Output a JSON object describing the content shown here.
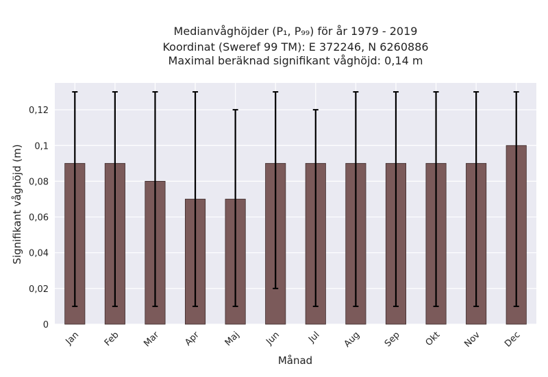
{
  "chart_data": {
    "type": "bar",
    "title_lines": [
      "Medianvåghöjder (P₁, P₉₉) för år 1979 - 2019",
      "Koordinat (Sweref 99 TM): E 372246, N 6260886",
      "Maximal beräknad signifikant våghöjd: 0,14 m"
    ],
    "xlabel": "Månad",
    "ylabel": "Signifikant våghöjd (m)",
    "categories": [
      "Jan",
      "Feb",
      "Mar",
      "Apr",
      "Maj",
      "Jun",
      "Jul",
      "Aug",
      "Sep",
      "Okt",
      "Nov",
      "Dec"
    ],
    "values": [
      0.09,
      0.09,
      0.08,
      0.07,
      0.07,
      0.09,
      0.09,
      0.09,
      0.09,
      0.09,
      0.09,
      0.1
    ],
    "err_low": [
      0.01,
      0.01,
      0.01,
      0.01,
      0.01,
      0.02,
      0.01,
      0.01,
      0.01,
      0.01,
      0.01,
      0.01
    ],
    "err_high": [
      0.13,
      0.13,
      0.13,
      0.13,
      0.12,
      0.13,
      0.12,
      0.13,
      0.13,
      0.13,
      0.13,
      0.13
    ],
    "ylim": [
      0,
      0.135
    ],
    "yticks": [
      0,
      0.02,
      0.04,
      0.06,
      0.08,
      0.1,
      0.12
    ],
    "ytick_labels": [
      "0",
      "0,02",
      "0,04",
      "0,06",
      "0,08",
      "0,1",
      "0,12"
    ],
    "grid": true,
    "colors": {
      "bar": "#7b5a5a",
      "bar_edge": "#3d2b2b",
      "plot_bg": "#eaeaf2",
      "grid": "#ffffff",
      "error": "#000000"
    }
  }
}
